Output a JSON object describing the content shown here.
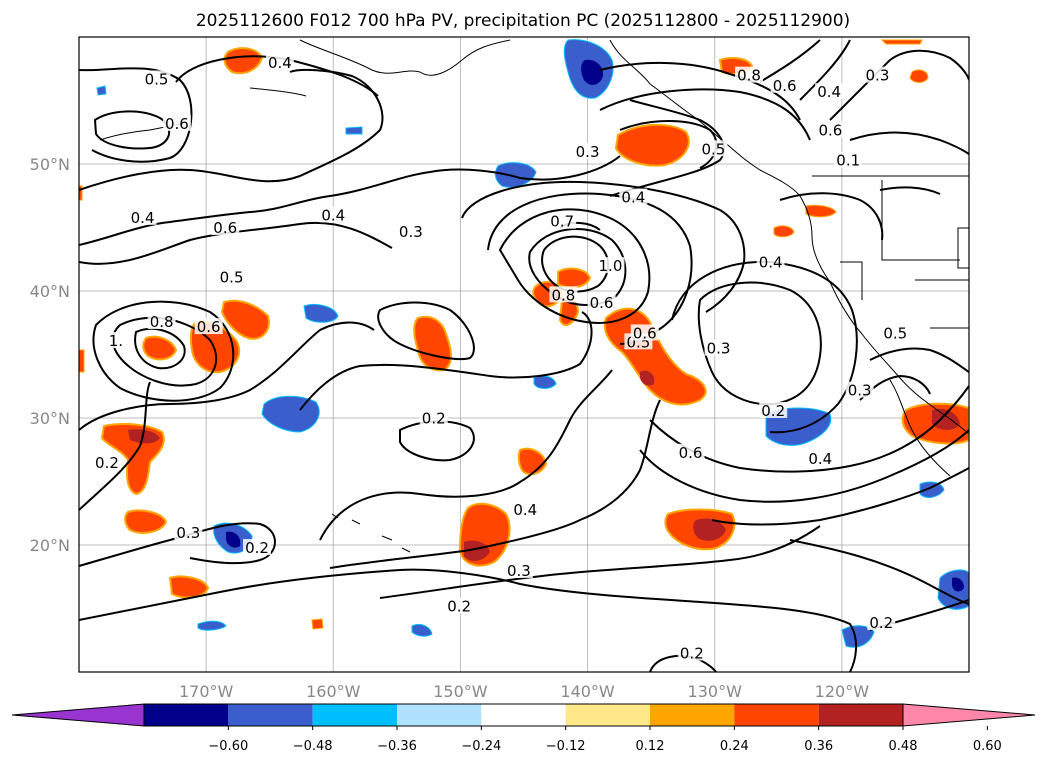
{
  "title": "2025112600 F012 700 hPa PV, precipitation PC (2025112800 - 2025112900)",
  "map": {
    "lon_labels": [
      "170°W",
      "160°W",
      "150°W",
      "140°W",
      "130°W",
      "120°W"
    ],
    "lat_labels": [
      "50°N",
      "40°N",
      "30°N",
      "20°N"
    ]
  },
  "colorbar": {
    "ticks": [
      "−0.60",
      "−0.48",
      "−0.36",
      "−0.24",
      "−0.12",
      "0.12",
      "0.24",
      "0.36",
      "0.48",
      "0.60"
    ],
    "colors": [
      "#9a34d0",
      "#00008b",
      "#3a5fcd",
      "#00bfff",
      "#b0e2ff",
      "#ffffff",
      "#ffe88a",
      "#ffa500",
      "#ff4500",
      "#b22222",
      "#ff88aa"
    ]
  },
  "contour_labels": [
    {
      "text": "0.5",
      "lon": -173.9,
      "lat": 56.5
    },
    {
      "text": "0.6",
      "lon": -172.3,
      "lat": 53.0
    },
    {
      "text": "0.4",
      "lon": -164.2,
      "lat": 57.8
    },
    {
      "text": "0.4",
      "lon": -175.0,
      "lat": 45.6
    },
    {
      "text": "0.6",
      "lon": -168.5,
      "lat": 44.8
    },
    {
      "text": "0.4",
      "lon": -160.0,
      "lat": 45.8
    },
    {
      "text": "0.3",
      "lon": -153.9,
      "lat": 44.5
    },
    {
      "text": "0.5",
      "lon": -168.0,
      "lat": 40.9
    },
    {
      "text": "0.3",
      "lon": -140.0,
      "lat": 50.8
    },
    {
      "text": "0.4",
      "lon": -136.4,
      "lat": 47.2
    },
    {
      "text": "0.7",
      "lon": -142.0,
      "lat": 45.3
    },
    {
      "text": "1.0",
      "lon": -138.2,
      "lat": 41.8
    },
    {
      "text": "0.8",
      "lon": -141.9,
      "lat": 39.5
    },
    {
      "text": "0.6",
      "lon": -138.9,
      "lat": 38.9
    },
    {
      "text": "0.5",
      "lon": -136.0,
      "lat": 35.8
    },
    {
      "text": "0.6",
      "lon": -135.5,
      "lat": 36.5
    },
    {
      "text": "0.3",
      "lon": -129.7,
      "lat": 35.3
    },
    {
      "text": "0.8",
      "lon": -127.3,
      "lat": 56.8
    },
    {
      "text": "0.6",
      "lon": -124.5,
      "lat": 56.0
    },
    {
      "text": "0.4",
      "lon": -121.0,
      "lat": 55.5
    },
    {
      "text": "0.3",
      "lon": -117.2,
      "lat": 56.8
    },
    {
      "text": "0.5",
      "lon": -130.1,
      "lat": 51.0
    },
    {
      "text": "0.6",
      "lon": -120.9,
      "lat": 52.5
    },
    {
      "text": "0.1",
      "lon": -119.5,
      "lat": 50.1
    },
    {
      "text": "0.4",
      "lon": -125.6,
      "lat": 42.1
    },
    {
      "text": "0.5",
      "lon": -115.8,
      "lat": 36.5
    },
    {
      "text": "0.3",
      "lon": -118.6,
      "lat": 32.0
    },
    {
      "text": "0.2",
      "lon": -125.4,
      "lat": 30.4
    },
    {
      "text": "0.4",
      "lon": -121.7,
      "lat": 26.6
    },
    {
      "text": "0.6",
      "lon": -131.9,
      "lat": 27.1
    },
    {
      "text": "0.2",
      "lon": -152.1,
      "lat": 29.8
    },
    {
      "text": "0.4",
      "lon": -144.9,
      "lat": 22.6
    },
    {
      "text": "0.3",
      "lon": -145.4,
      "lat": 17.8
    },
    {
      "text": "0.2",
      "lon": -150.1,
      "lat": 15.0
    },
    {
      "text": "0.2",
      "lon": -131.8,
      "lat": 11.3
    },
    {
      "text": "0.2",
      "lon": -116.9,
      "lat": 13.7
    },
    {
      "text": "0.3",
      "lon": -171.4,
      "lat": 20.8
    },
    {
      "text": "0.2",
      "lon": -166.0,
      "lat": 19.6
    },
    {
      "text": "0.2",
      "lon": -177.8,
      "lat": 26.3
    },
    {
      "text": "0.8",
      "lon": -173.5,
      "lat": 37.4
    },
    {
      "text": "0.6",
      "lon": -169.8,
      "lat": 37.0
    },
    {
      "text": "1.",
      "lon": -177.1,
      "lat": 35.9
    }
  ]
}
